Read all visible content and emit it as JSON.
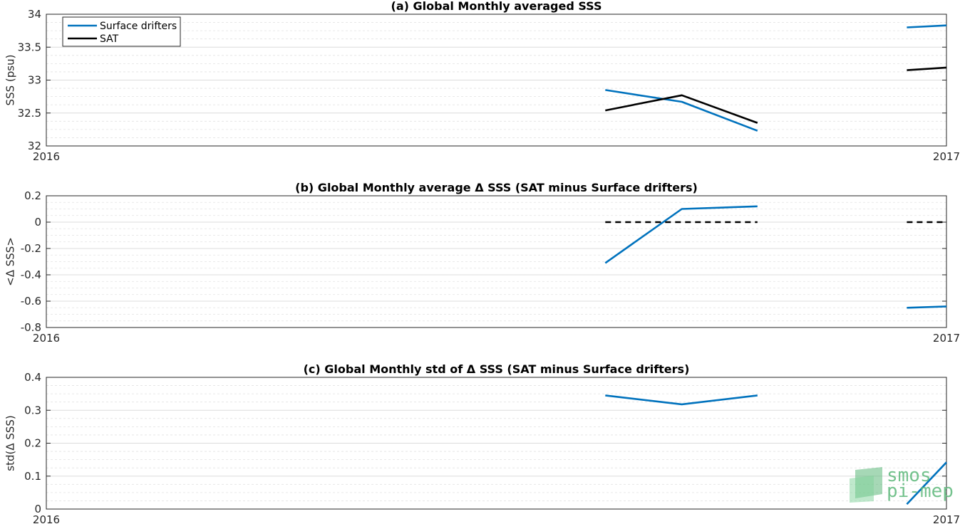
{
  "colors": {
    "drifters": "#0072BD",
    "sat": "#000000",
    "zero": "#000000"
  },
  "legend": {
    "placement": "top-left",
    "items": [
      "Surface drifters",
      "SAT"
    ]
  },
  "logo": {
    "line1": "smos",
    "line2": "pi-mep"
  },
  "chart_data": [
    {
      "type": "line",
      "title": "(a) Global Monthly averaged SSS",
      "ylabel": "SSS (psu)",
      "xlim": [
        2016,
        2017
      ],
      "xticks": [
        "2016",
        "2017"
      ],
      "ylim": [
        32,
        34
      ],
      "yticks": [
        "32",
        "32.5",
        "33",
        "33.5",
        "34"
      ],
      "grid": true,
      "series": [
        {
          "name": "Surface drifters",
          "color_key": "drifters",
          "dash": false,
          "segments": [
            [
              [
                2016.621,
                32.85
              ],
              [
                2016.706,
                32.67
              ],
              [
                2016.79,
                32.23
              ]
            ],
            [
              [
                2016.956,
                33.8
              ],
              [
                2017.0,
                33.83
              ]
            ]
          ]
        },
        {
          "name": "SAT",
          "color_key": "sat",
          "dash": false,
          "segments": [
            [
              [
                2016.621,
                32.54
              ],
              [
                2016.706,
                32.77
              ],
              [
                2016.79,
                32.35
              ]
            ],
            [
              [
                2016.956,
                33.15
              ],
              [
                2017.0,
                33.19
              ]
            ]
          ]
        }
      ]
    },
    {
      "type": "line",
      "title": "(b) Global Monthly average Δ SSS (SAT minus Surface drifters)",
      "ylabel": "<Δ SSS>",
      "xlim": [
        2016,
        2017
      ],
      "xticks": [
        "2016",
        "2017"
      ],
      "ylim": [
        -0.8,
        0.2
      ],
      "yticks": [
        "-0.8",
        "-0.6",
        "-0.4",
        "-0.2",
        "0",
        "0.2"
      ],
      "grid": true,
      "series": [
        {
          "color_key": "drifters",
          "dash": false,
          "segments": [
            [
              [
                2016.621,
                -0.31
              ],
              [
                2016.706,
                0.1
              ],
              [
                2016.79,
                0.12
              ]
            ],
            [
              [
                2016.956,
                -0.65
              ],
              [
                2017.0,
                -0.64
              ]
            ]
          ]
        },
        {
          "color_key": "zero",
          "dash": true,
          "segments": [
            [
              [
                2016.621,
                0
              ],
              [
                2016.79,
                0
              ]
            ],
            [
              [
                2016.956,
                0
              ],
              [
                2017.0,
                0
              ]
            ]
          ]
        }
      ]
    },
    {
      "type": "line",
      "title": "(c) Global Monthly std of Δ SSS (SAT minus Surface drifters)",
      "ylabel": "std(Δ SSS)",
      "xlim": [
        2016,
        2017
      ],
      "xticks": [
        "2016",
        "2017"
      ],
      "ylim": [
        0,
        0.4
      ],
      "yticks": [
        "0",
        "0.1",
        "0.2",
        "0.3",
        "0.4"
      ],
      "grid": true,
      "series": [
        {
          "color_key": "drifters",
          "dash": false,
          "segments": [
            [
              [
                2016.621,
                0.345
              ],
              [
                2016.706,
                0.318
              ],
              [
                2016.79,
                0.345
              ]
            ],
            [
              [
                2016.956,
                0.015
              ],
              [
                2017.0,
                0.142
              ]
            ]
          ]
        }
      ]
    }
  ]
}
